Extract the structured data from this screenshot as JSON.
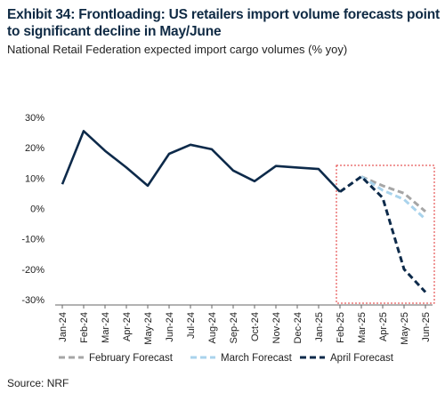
{
  "title": "Exhibit 34: Frontloading: US retailers import volume forecasts point to significant decline in May/June",
  "subtitle": "National Retail Federation expected import cargo volumes (% yoy)",
  "source": "Source: NRF",
  "chart_data": {
    "type": "line",
    "categories": [
      "Jan-24",
      "Feb-24",
      "Mar-24",
      "Apr-24",
      "May-24",
      "Jun-24",
      "Jul-24",
      "Aug-24",
      "Sep-24",
      "Oct-24",
      "Nov-24",
      "Dec-24",
      "Jan-25",
      "Feb-25",
      "Mar-25",
      "Apr-25",
      "May-25",
      "Jun-25"
    ],
    "ylim": [
      -30,
      30
    ],
    "yticks": [
      30,
      20,
      10,
      0,
      -10,
      -20,
      -30
    ],
    "ytick_labels": [
      "30%",
      "20%",
      "10%",
      "0%",
      "-10%",
      "-20%",
      "-30%"
    ],
    "grid": false,
    "legend_position": "bottom",
    "series": [
      {
        "name": "",
        "color": "#0d2a4a",
        "style": "solid",
        "values": [
          8,
          25.5,
          19,
          13.5,
          7.5,
          18,
          21,
          19.5,
          12.5,
          9,
          14,
          13.5,
          13,
          5.5,
          null,
          null,
          null,
          null
        ]
      },
      {
        "name": "February Forecast",
        "color": "#a6a6a6",
        "style": "dashed",
        "values": [
          null,
          null,
          null,
          null,
          null,
          null,
          null,
          null,
          null,
          null,
          null,
          null,
          null,
          null,
          10.5,
          7.5,
          5,
          -1
        ]
      },
      {
        "name": "March Forecast",
        "color": "#a9d3ec",
        "style": "dashed",
        "values": [
          null,
          null,
          null,
          null,
          null,
          null,
          null,
          null,
          null,
          null,
          null,
          null,
          null,
          null,
          10.5,
          6,
          3,
          -3.5
        ]
      },
      {
        "name": "April Forecast",
        "color": "#0d2a4a",
        "style": "dashed",
        "values": [
          null,
          null,
          null,
          null,
          null,
          null,
          null,
          null,
          null,
          null,
          null,
          null,
          null,
          5.5,
          10.5,
          3.5,
          -20,
          -27.5
        ]
      }
    ],
    "highlight": {
      "from": "Feb-25",
      "to": "Jun-25",
      "color": "#e03030"
    }
  }
}
